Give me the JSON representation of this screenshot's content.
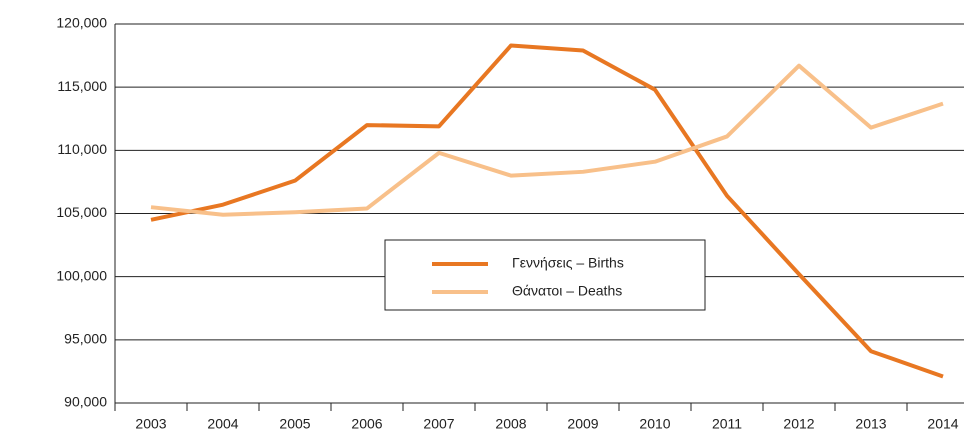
{
  "chart_data": {
    "type": "line",
    "categories": [
      "2003",
      "2004",
      "2005",
      "2006",
      "2007",
      "2008",
      "2009",
      "2010",
      "2011",
      "2012",
      "2013",
      "2014"
    ],
    "series": [
      {
        "name": "Γεννήσεις – Births",
        "color": "#e87722",
        "values": [
          104500,
          105700,
          107600,
          112000,
          111900,
          118300,
          117900,
          114800,
          106400,
          100200,
          94100,
          92100
        ]
      },
      {
        "name": "Θάνατοι – Deaths",
        "color": "#f8c08a",
        "values": [
          105500,
          104900,
          105100,
          105400,
          109800,
          108000,
          108300,
          109100,
          111100,
          116700,
          111800,
          113700
        ]
      }
    ],
    "ylim": [
      90000,
      120000
    ],
    "yticks": [
      {
        "value": 90000,
        "label": "90,000"
      },
      {
        "value": 95000,
        "label": "95,000"
      },
      {
        "value": 100000,
        "label": "100,000"
      },
      {
        "value": 105000,
        "label": "105,000"
      },
      {
        "value": 110000,
        "label": "110,000"
      },
      {
        "value": 115000,
        "label": "115,000"
      },
      {
        "value": 120000,
        "label": "120,000"
      }
    ],
    "grid": true
  }
}
